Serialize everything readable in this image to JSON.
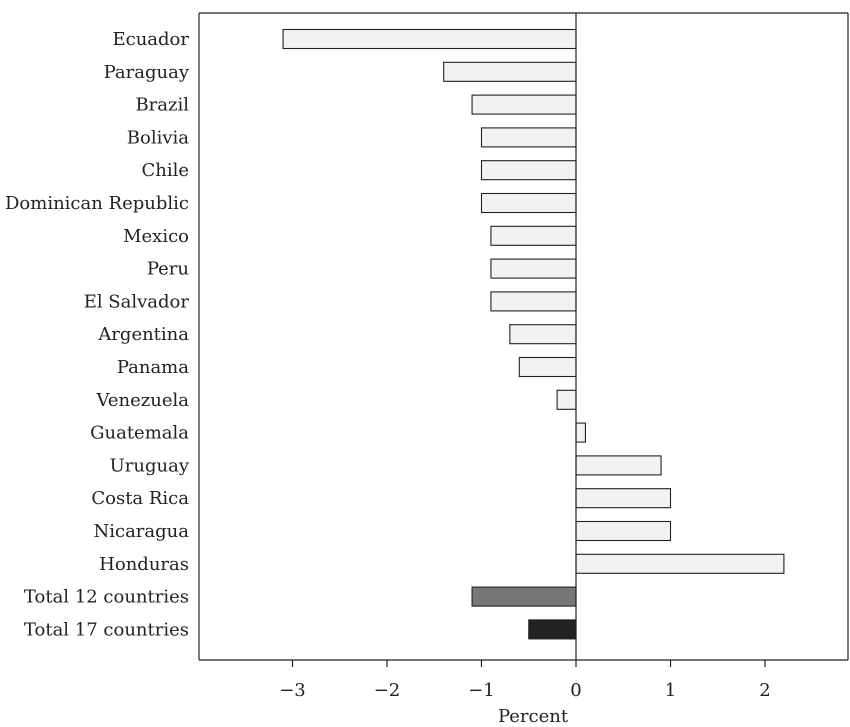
{
  "chart_data": {
    "type": "bar",
    "orientation": "horizontal",
    "categories": [
      "Ecuador",
      "Paraguay",
      "Brazil",
      "Bolivia",
      "Chile",
      "Dominican Republic",
      "Mexico",
      "Peru",
      "El Salvador",
      "Argentina",
      "Panama",
      "Venezuela",
      "Guatemala",
      "Uruguay",
      "Costa Rica",
      "Nicaragua",
      "Honduras",
      "Total 12 countries",
      "Total 17 countries"
    ],
    "values": [
      -3.1,
      -1.4,
      -1.1,
      -1.0,
      -1.0,
      -1.0,
      -0.9,
      -0.9,
      -0.9,
      -0.7,
      -0.6,
      -0.2,
      0.1,
      0.9,
      1.0,
      1.0,
      2.2,
      -1.1,
      -0.5
    ],
    "bar_colors": [
      "#f2f2f2",
      "#f2f2f2",
      "#f2f2f2",
      "#f2f2f2",
      "#f2f2f2",
      "#f2f2f2",
      "#f2f2f2",
      "#f2f2f2",
      "#f2f2f2",
      "#f2f2f2",
      "#f2f2f2",
      "#f2f2f2",
      "#f2f2f2",
      "#f2f2f2",
      "#f2f2f2",
      "#f2f2f2",
      "#f2f2f2",
      "#777777",
      "#222222"
    ],
    "xlabel": "Percent",
    "xlim": [
      -4,
      2.9
    ],
    "xticks": [
      -3,
      -2,
      -1,
      0,
      1,
      2
    ],
    "xtick_labels": [
      "−3",
      "−2",
      "−1",
      "0",
      "1",
      "2"
    ],
    "grid": false,
    "legend": "none"
  }
}
